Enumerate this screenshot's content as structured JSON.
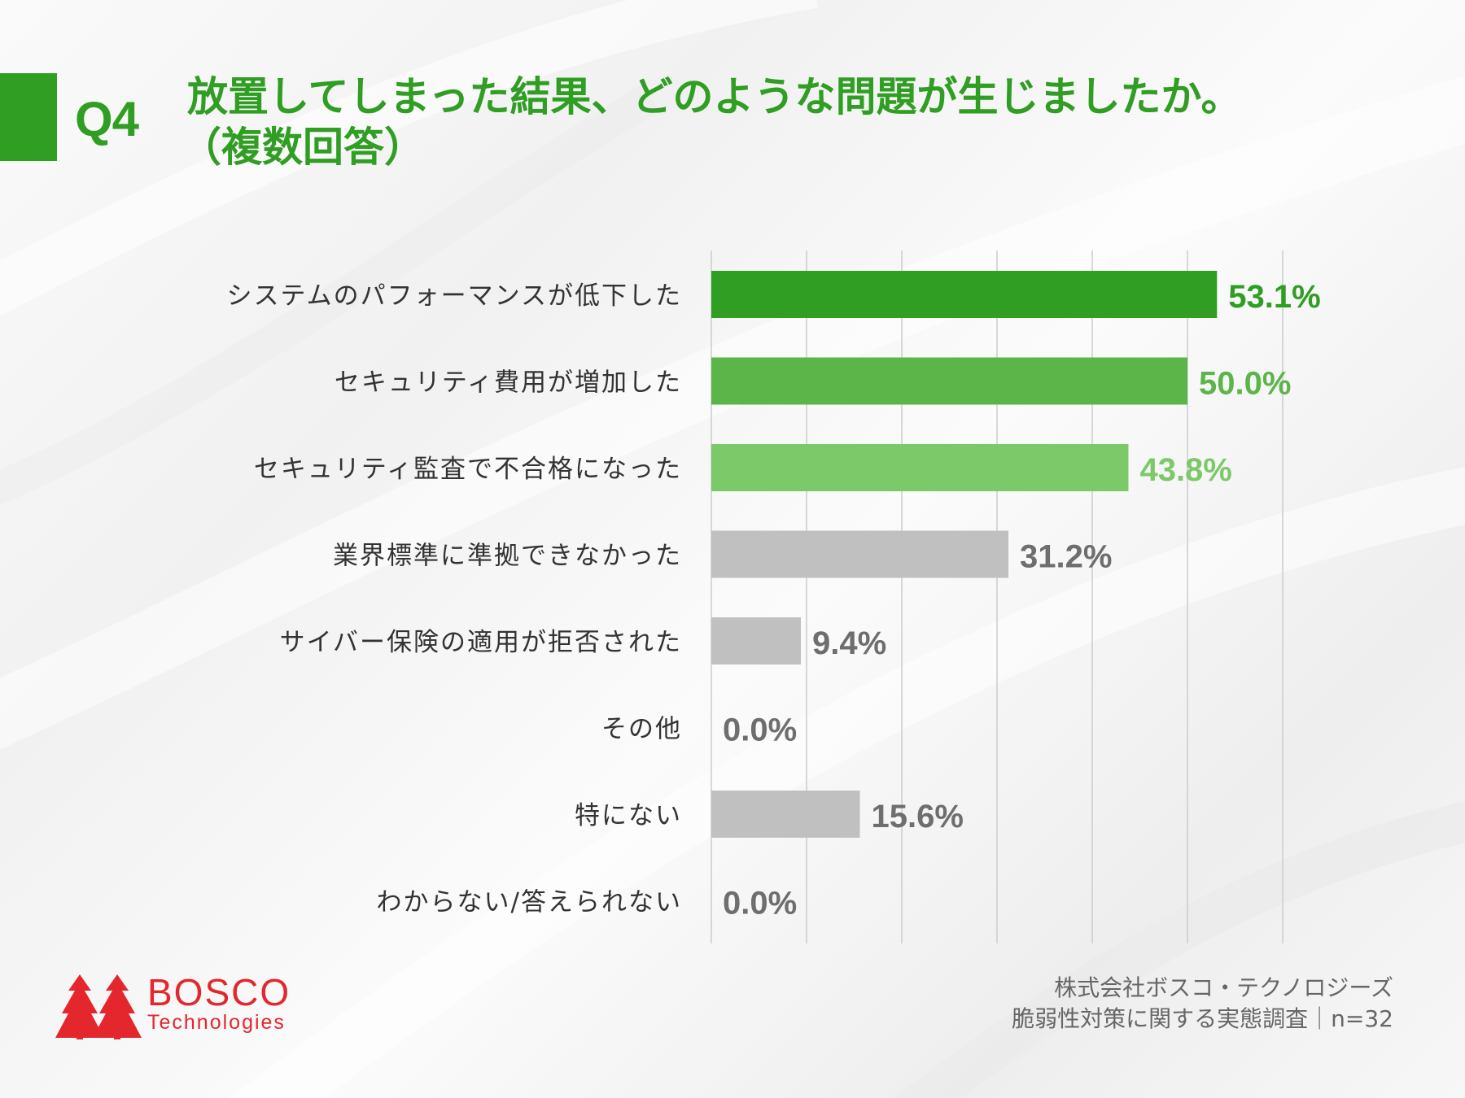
{
  "header": {
    "q_label": "Q4",
    "title_line1": "放置してしまった結果、どのような問題が生じましたか。",
    "title_line2": "（複数回答）"
  },
  "colors": {
    "accent": "#2f9e23",
    "bar_1": "#2f9e23",
    "bar_2": "#5cb548",
    "bar_3": "#7cc96a",
    "bar_gray": "#c0c0c0",
    "value_gray": "#6e6e6e",
    "grid": "#cccccc",
    "logo_red": "#e4272c"
  },
  "chart_data": {
    "type": "bar",
    "orientation": "horizontal",
    "title": "放置してしまった結果、どのような問題が生じましたか。（複数回答）",
    "categories": [
      "システムのパフォーマンスが低下した",
      "セキュリティ費用が増加した",
      "セキュリティ監査で不合格になった",
      "業界標準に準拠できなかった",
      "サイバー保険の適用が拒否された",
      "その他",
      "特にない",
      "わからない/答えられない"
    ],
    "values": [
      53.1,
      50.0,
      43.8,
      31.2,
      9.4,
      0.0,
      15.6,
      0.0
    ],
    "value_labels": [
      "53.1%",
      "50.0%",
      "43.8%",
      "31.2%",
      "9.4%",
      "0.0%",
      "15.6%",
      "0.0%"
    ],
    "xlim": [
      0,
      60
    ],
    "grid": true,
    "unit": "%"
  },
  "footer": {
    "company": "株式会社ボスコ・テクノロジーズ",
    "survey": "脆弱性対策に関する実態調査｜n=32"
  },
  "logo": {
    "name": "BOSCO",
    "sub": "Technologies"
  }
}
